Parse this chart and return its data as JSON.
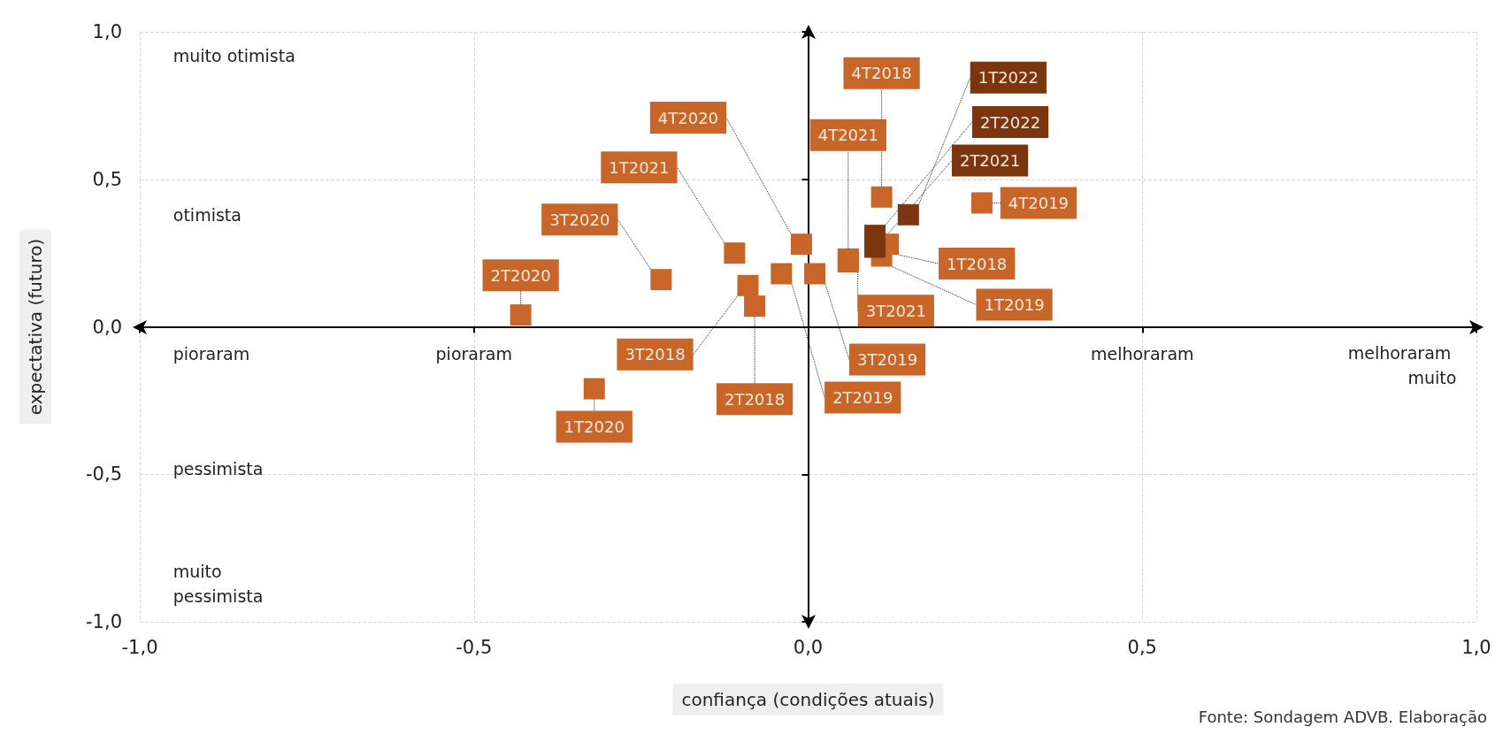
{
  "chart_data": {
    "type": "scatter",
    "xlabel": "confiança (condições atuais)",
    "ylabel": "expectativa (futuro)",
    "xlim": [
      -1,
      1
    ],
    "xticks": [
      {
        "value": -1,
        "label": "-1,0"
      },
      {
        "value": -0.5,
        "label": "-0,5"
      },
      {
        "value": 0,
        "label": "0,0"
      },
      {
        "value": 0.5,
        "label": "0,5"
      },
      {
        "value": 1,
        "label": "1,0"
      }
    ],
    "ylim": [
      -1,
      1
    ],
    "yticks": [
      {
        "value": -1,
        "label": "-1,0"
      },
      {
        "value": -0.5,
        "label": "-0,5"
      },
      {
        "value": 0,
        "label": "0,0"
      },
      {
        "value": 0.5,
        "label": "0,5"
      },
      {
        "value": 1,
        "label": "1,0"
      }
    ],
    "grid": true,
    "marker": "square",
    "series": [
      {
        "x": [
          0.12,
          -0.08,
          -0.09,
          0.11,
          0.11,
          -0.04,
          0.01,
          0.26,
          -0.32,
          -0.43,
          -0.22,
          -0.01,
          -0.11,
          0.1,
          0.06,
          0.06,
          0.15,
          0.1
        ],
        "values": [
          0.28,
          0.07,
          0.14,
          0.44,
          0.24,
          0.18,
          0.18,
          0.42,
          -0.21,
          0.04,
          0.16,
          0.28,
          0.25,
          0.27,
          0.22,
          0.23,
          0.38,
          0.31
        ],
        "value_labels": [
          "1T2018",
          "2T2018",
          "3T2018",
          "4T2018",
          "1T2019",
          "2T2019",
          "3T2019",
          "4T2019",
          "1T2020",
          "2T2020",
          "3T2020",
          "4T2020",
          "1T2021",
          "2T2021",
          "3T2021",
          "4T2021",
          "1T2022",
          "2T2022"
        ],
        "colors": [
          "#c8662a",
          "#c8662a",
          "#c8662a",
          "#c8662a",
          "#c8662a",
          "#c8662a",
          "#c8662a",
          "#c8662a",
          "#c8662a",
          "#c8662a",
          "#c8662a",
          "#c8662a",
          "#c8662a",
          "#7b3610",
          "#c8662a",
          "#c8662a",
          "#7b3610",
          "#7b3610"
        ]
      }
    ],
    "annotations": [
      "muito otimista",
      "otimista",
      "pioraram",
      "pioraram",
      "melhoraram",
      "melhoraram muito",
      "pessimista",
      "muito pessimista",
      "Fonte: Sondagem ADVB. Elaboração"
    ]
  }
}
